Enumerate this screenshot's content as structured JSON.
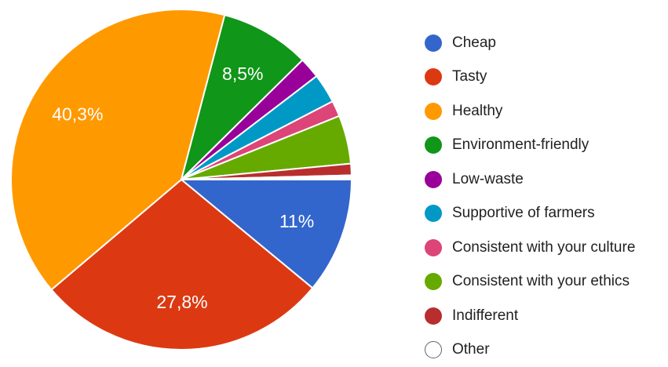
{
  "chart_data": {
    "type": "pie",
    "start_angle_deg": 0,
    "direction": "clockwise",
    "legend_position": "right",
    "slices": [
      {
        "label": "Cheap",
        "value": 11.0,
        "display": "11%",
        "color": "#3366cc"
      },
      {
        "label": "Tasty",
        "value": 27.8,
        "display": "27,8%",
        "color": "#dc3912"
      },
      {
        "label": "Healthy",
        "value": 40.3,
        "display": "40,3%",
        "color": "#ff9900"
      },
      {
        "label": "Environment-friendly",
        "value": 8.5,
        "display": "8,5%",
        "color": "#109618"
      },
      {
        "label": "Low-waste",
        "value": 2.0,
        "display": "",
        "color": "#990099"
      },
      {
        "label": "Supportive of farmers",
        "value": 2.8,
        "display": "",
        "color": "#0099c6"
      },
      {
        "label": "Consistent with your culture",
        "value": 1.5,
        "display": "",
        "color": "#dd4477"
      },
      {
        "label": "Consistent with your ethics",
        "value": 4.6,
        "display": "",
        "color": "#66aa00"
      },
      {
        "label": "Indifferent",
        "value": 1.1,
        "display": "",
        "color": "#b82e2e"
      },
      {
        "label": "Other",
        "value": 0.4,
        "display": "",
        "color": "#ffffff",
        "outline": "#5f6368"
      }
    ]
  }
}
